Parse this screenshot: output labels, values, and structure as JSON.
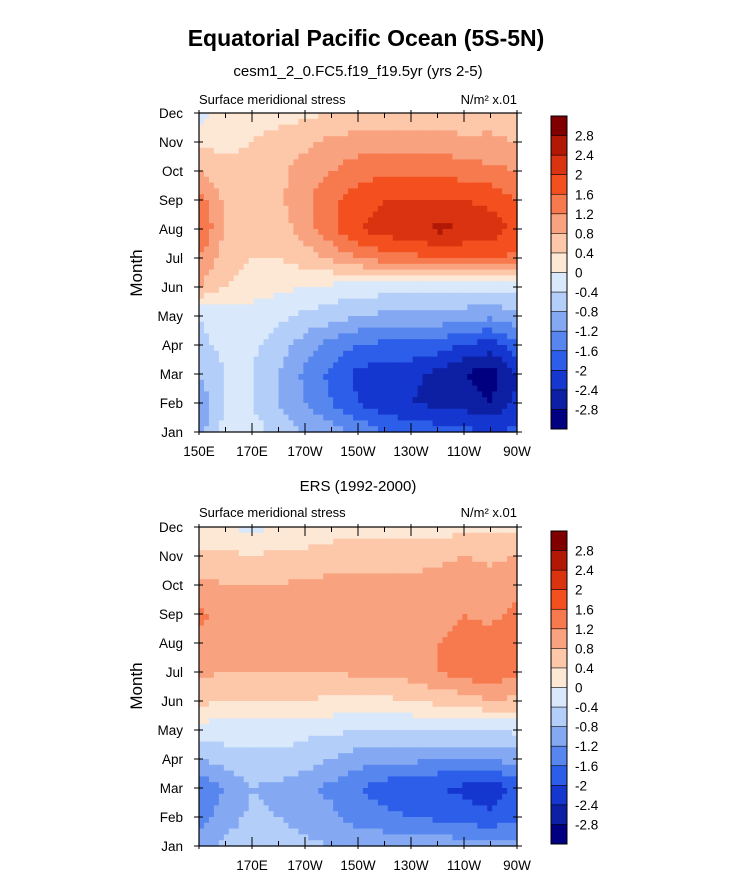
{
  "page": {
    "title": "Equatorial Pacific Ocean (5S-5N)"
  },
  "colorbar": {
    "levels": [
      "2.8",
      "2.4",
      "2",
      "1.6",
      "1.2",
      "0.8",
      "0.4",
      "0",
      "-0.4",
      "-0.8",
      "-1.2",
      "-1.6",
      "-2",
      "-2.4",
      "-2.8"
    ],
    "colors": [
      "#800000",
      "#b11805",
      "#d93310",
      "#f4501f",
      "#f77a4f",
      "#f9a27f",
      "#fcc8a9",
      "#fde8d6",
      "#d9e8fb",
      "#b3cef8",
      "#84a9f2",
      "#5787ee",
      "#2c5ee9",
      "#1537d0",
      "#0d1fa3",
      "#000080"
    ]
  },
  "chart_data": [
    {
      "type": "heatmap",
      "subtitle": "cesm1_2_0.FC5.f19_f19.5yr (yrs 2-5)",
      "left_label": "Surface meridional stress",
      "units_label": "N/m² x.01",
      "ylabel": "Month",
      "xlabel": "",
      "y_ticks": [
        "Jan",
        "Feb",
        "Mar",
        "Apr",
        "May",
        "Jun",
        "Jul",
        "Aug",
        "Sep",
        "Oct",
        "Nov",
        "Dec"
      ],
      "x_ticks": [
        "150E",
        "170E",
        "170W",
        "150W",
        "130W",
        "110W",
        "90W"
      ],
      "x_range": [
        150,
        270
      ],
      "y_range": [
        1,
        12
      ],
      "lon": [
        150,
        160,
        170,
        180,
        190,
        200,
        210,
        220,
        230,
        240,
        250,
        260,
        270
      ],
      "month": [
        1,
        2,
        3,
        4,
        5,
        6,
        7,
        8,
        9,
        10,
        11,
        12
      ],
      "values": [
        [
          -1.0,
          -0.2,
          -0.2,
          -0.6,
          -0.8,
          -1.0,
          -1.3,
          -1.6,
          -1.7,
          -1.8,
          -1.9,
          -2.0,
          -1.9
        ],
        [
          -1.1,
          -0.4,
          -0.4,
          -0.8,
          -1.2,
          -1.6,
          -2.0,
          -2.3,
          -2.4,
          -2.5,
          -2.6,
          -2.8,
          -2.3
        ],
        [
          -0.8,
          -0.4,
          -0.4,
          -0.8,
          -1.3,
          -1.7,
          -2.1,
          -2.3,
          -2.3,
          -2.5,
          -2.8,
          -3.0,
          -2.4
        ],
        [
          -0.5,
          -0.3,
          -0.3,
          -0.6,
          -1.0,
          -1.4,
          -1.6,
          -1.7,
          -1.7,
          -1.8,
          -2.0,
          -2.2,
          -1.7
        ],
        [
          -0.4,
          -0.2,
          -0.2,
          -0.3,
          -0.5,
          -0.6,
          -0.8,
          -0.9,
          -0.9,
          -0.9,
          -1.0,
          -1.1,
          -0.9
        ],
        [
          0.8,
          0.4,
          0.2,
          0.1,
          0.0,
          -0.1,
          -0.2,
          -0.2,
          -0.3,
          -0.3,
          -0.3,
          -0.3,
          -0.2
        ],
        [
          1.2,
          0.6,
          0.4,
          0.4,
          0.6,
          0.9,
          1.2,
          1.4,
          1.5,
          1.6,
          1.6,
          1.7,
          1.5
        ],
        [
          1.7,
          0.7,
          0.5,
          0.6,
          1.0,
          1.5,
          2.0,
          2.2,
          2.3,
          2.5,
          2.4,
          2.2,
          1.9
        ],
        [
          1.4,
          0.7,
          0.6,
          0.7,
          1.1,
          1.5,
          1.8,
          2.0,
          2.0,
          2.0,
          2.0,
          1.9,
          1.6
        ],
        [
          0.8,
          0.5,
          0.5,
          0.7,
          1.0,
          1.2,
          1.4,
          1.5,
          1.5,
          1.5,
          1.4,
          1.3,
          1.2
        ],
        [
          0.3,
          0.3,
          0.4,
          0.5,
          0.7,
          0.9,
          1.0,
          1.0,
          1.0,
          1.0,
          0.9,
          0.9,
          0.8
        ],
        [
          -0.2,
          0.2,
          0.3,
          0.3,
          0.3,
          0.4,
          0.4,
          0.4,
          0.5,
          0.5,
          0.5,
          0.6,
          0.5
        ]
      ]
    },
    {
      "type": "heatmap",
      "subtitle": "ERS (1992-2000)",
      "left_label": "Surface meridional stress",
      "units_label": "N/m² x.01",
      "ylabel": "Month",
      "xlabel": "",
      "y_ticks": [
        "Jan",
        "Feb",
        "Mar",
        "Apr",
        "May",
        "Jun",
        "Jul",
        "Aug",
        "Sep",
        "Oct",
        "Nov",
        "Dec"
      ],
      "x_ticks": [
        "170E",
        "170W",
        "150W",
        "130W",
        "110W",
        "90W"
      ],
      "x_range": [
        150,
        270
      ],
      "y_range": [
        1,
        12
      ],
      "lon": [
        150,
        160,
        170,
        180,
        190,
        200,
        210,
        220,
        230,
        240,
        250,
        260,
        270
      ],
      "month": [
        1,
        2,
        3,
        4,
        5,
        6,
        7,
        8,
        9,
        10,
        11,
        12
      ],
      "values": [
        [
          -1.0,
          -0.7,
          -0.5,
          -0.6,
          -0.7,
          -0.8,
          -0.8,
          -0.9,
          -0.9,
          -0.9,
          -1.0,
          -1.0,
          -1.0
        ],
        [
          -1.4,
          -1.0,
          -0.7,
          -0.8,
          -1.0,
          -1.1,
          -1.4,
          -1.5,
          -1.6,
          -1.7,
          -1.8,
          -1.9,
          -1.7
        ],
        [
          -1.5,
          -1.2,
          -0.8,
          -0.9,
          -1.1,
          -1.3,
          -1.6,
          -1.8,
          -1.9,
          -2.0,
          -2.1,
          -2.3,
          -1.9
        ],
        [
          -0.8,
          -0.6,
          -0.5,
          -0.5,
          -0.6,
          -0.8,
          -1.0,
          -1.1,
          -1.1,
          -1.2,
          -1.2,
          -1.2,
          -1.0
        ],
        [
          -0.2,
          -0.2,
          -0.3,
          -0.2,
          -0.3,
          -0.3,
          -0.4,
          -0.4,
          -0.4,
          -0.4,
          -0.4,
          -0.4,
          -0.3
        ],
        [
          0.5,
          0.4,
          0.4,
          0.4,
          0.4,
          0.3,
          0.3,
          0.3,
          0.4,
          0.5,
          0.6,
          0.8,
          0.7
        ],
        [
          0.9,
          0.8,
          0.8,
          0.8,
          0.8,
          0.8,
          0.9,
          0.9,
          1.0,
          1.2,
          1.4,
          1.5,
          1.3
        ],
        [
          1.1,
          1.0,
          1.0,
          1.0,
          1.0,
          1.0,
          1.0,
          1.0,
          1.0,
          1.2,
          1.3,
          1.4,
          1.3
        ],
        [
          1.3,
          1.0,
          1.0,
          1.0,
          1.1,
          1.1,
          1.0,
          1.1,
          1.0,
          1.1,
          1.2,
          1.1,
          1.3
        ],
        [
          0.9,
          0.8,
          0.8,
          0.8,
          0.9,
          0.9,
          0.9,
          0.9,
          0.9,
          1.0,
          1.0,
          1.0,
          1.1
        ],
        [
          0.5,
          0.5,
          0.4,
          0.5,
          0.5,
          0.6,
          0.6,
          0.6,
          0.6,
          0.7,
          0.8,
          0.7,
          0.8
        ],
        [
          0.1,
          0.0,
          -0.1,
          0.0,
          0.1,
          0.2,
          0.2,
          0.2,
          0.2,
          0.2,
          0.3,
          0.3,
          0.3
        ]
      ]
    }
  ]
}
